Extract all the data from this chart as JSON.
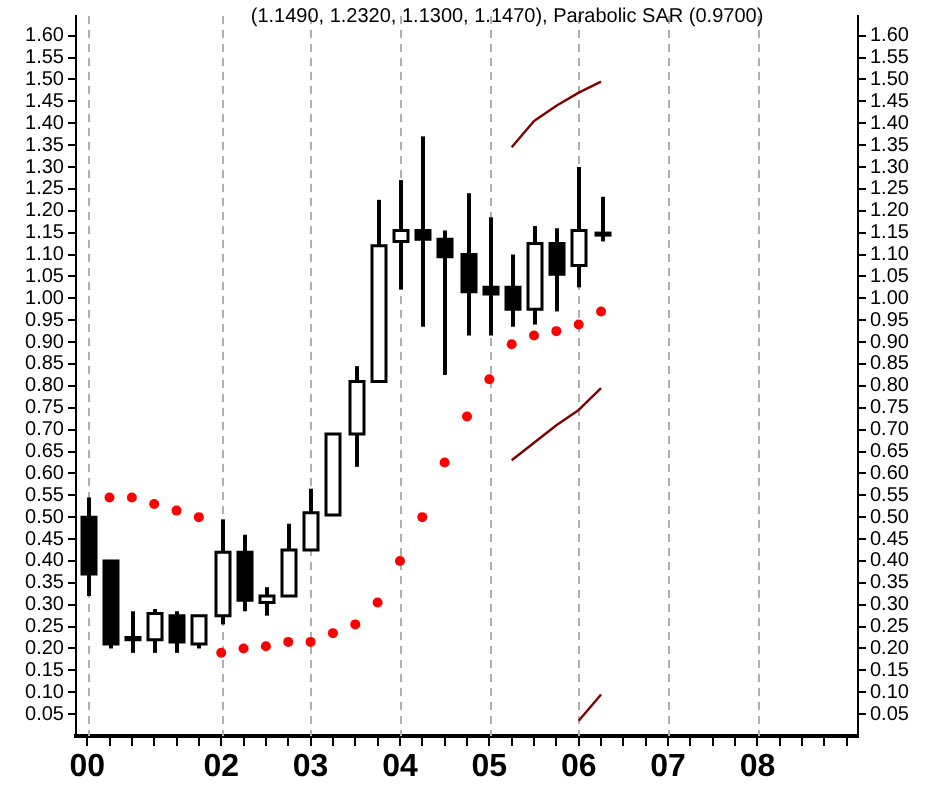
{
  "chart_data": {
    "type": "candlestick",
    "title": "(1.1490, 1.2320, 1.1300, 1.1470), Parabolic SAR (0.9700)",
    "categories": [
      "00",
      null,
      null,
      null,
      null,
      null,
      "02",
      null,
      null,
      null,
      "03",
      null,
      null,
      null,
      "04",
      null,
      null,
      null,
      "05",
      null,
      null,
      null,
      "06",
      null,
      null,
      null,
      "07",
      null,
      null,
      null,
      "08",
      null,
      null,
      null,
      null
    ],
    "ohlc": [
      [
        0.5,
        0.545,
        0.32,
        0.37
      ],
      [
        0.4,
        0.4,
        0.2,
        0.21
      ],
      [
        0.22,
        0.285,
        0.19,
        0.225
      ],
      [
        0.22,
        0.29,
        0.19,
        0.28
      ],
      [
        0.275,
        0.285,
        0.19,
        0.215
      ],
      [
        0.21,
        0.275,
        0.2,
        0.275
      ],
      [
        0.275,
        0.495,
        0.255,
        0.42
      ],
      [
        0.42,
        0.46,
        0.285,
        0.31
      ],
      [
        0.305,
        0.34,
        0.275,
        0.32
      ],
      [
        0.32,
        0.485,
        0.32,
        0.425
      ],
      [
        0.425,
        0.565,
        0.425,
        0.51
      ],
      [
        0.505,
        0.69,
        0.505,
        0.69
      ],
      [
        0.69,
        0.845,
        0.615,
        0.81
      ],
      [
        0.81,
        1.225,
        0.81,
        1.12
      ],
      [
        1.13,
        1.27,
        1.02,
        1.155
      ],
      [
        1.155,
        1.37,
        0.935,
        1.135
      ],
      [
        1.135,
        1.155,
        0.825,
        1.095
      ],
      [
        1.1,
        1.24,
        0.915,
        1.015
      ],
      [
        1.025,
        1.185,
        0.915,
        1.01
      ],
      [
        1.025,
        1.1,
        0.935,
        0.975
      ],
      [
        0.975,
        1.165,
        0.94,
        1.125
      ],
      [
        1.125,
        1.16,
        0.97,
        1.055
      ],
      [
        1.075,
        1.3,
        1.025,
        1.155
      ],
      [
        1.149,
        1.232,
        1.13,
        1.147
      ],
      null,
      null,
      null,
      null,
      null,
      null,
      null,
      null,
      null,
      null,
      null
    ],
    "series": [
      {
        "type": "scatter",
        "color": "#ff0000",
        "marker": "circle",
        "values": [
          null,
          0.545,
          0.545,
          0.53,
          0.515,
          0.5,
          0.19,
          0.2,
          0.205,
          0.215,
          0.215,
          0.235,
          0.255,
          0.305,
          0.4,
          0.5,
          0.625,
          0.73,
          0.815,
          0.895,
          0.915,
          0.925,
          0.94,
          0.97,
          null,
          null,
          null,
          null,
          null,
          null,
          null,
          null,
          null,
          null,
          null
        ]
      },
      {
        "type": "line",
        "color": "#800000",
        "marker": "none",
        "values": [
          null,
          null,
          null,
          null,
          null,
          null,
          null,
          null,
          null,
          null,
          null,
          null,
          null,
          null,
          null,
          null,
          null,
          null,
          null,
          1.345,
          1.405,
          1.44,
          1.47,
          1.495,
          null,
          null,
          null,
          null,
          null,
          null,
          null,
          null,
          null,
          null,
          null
        ]
      },
      {
        "type": "line",
        "color": "#800000",
        "marker": "none",
        "values": [
          null,
          null,
          null,
          null,
          null,
          null,
          null,
          null,
          null,
          null,
          null,
          null,
          null,
          null,
          null,
          null,
          null,
          null,
          null,
          0.63,
          0.67,
          0.71,
          0.745,
          0.795,
          null,
          null,
          null,
          null,
          null,
          null,
          null,
          null,
          null,
          null,
          null
        ]
      },
      {
        "type": "line",
        "color": "#800000",
        "marker": "none",
        "values": [
          null,
          null,
          null,
          null,
          null,
          null,
          null,
          null,
          null,
          null,
          null,
          null,
          null,
          null,
          null,
          null,
          null,
          null,
          null,
          null,
          null,
          null,
          0.035,
          0.095,
          null,
          null,
          null,
          null,
          null,
          null,
          null,
          null,
          null,
          null,
          null
        ]
      }
    ],
    "ylim": [
      0,
      1.645
    ],
    "yticks": [
      {
        "value": 0.05,
        "label": "0.05"
      },
      {
        "value": 0.1,
        "label": "0.10"
      },
      {
        "value": 0.15,
        "label": "0.15"
      },
      {
        "value": 0.2,
        "label": "0.20"
      },
      {
        "value": 0.25,
        "label": "0.25"
      },
      {
        "value": 0.3,
        "label": "0.30"
      },
      {
        "value": 0.35,
        "label": "0.35"
      },
      {
        "value": 0.4,
        "label": "0.40"
      },
      {
        "value": 0.45,
        "label": "0.45"
      },
      {
        "value": 0.5,
        "label": "0.50"
      },
      {
        "value": 0.55,
        "label": "0.55"
      },
      {
        "value": 0.6,
        "label": "0.60"
      },
      {
        "value": 0.65,
        "label": "0.65"
      },
      {
        "value": 0.7,
        "label": "0.70"
      },
      {
        "value": 0.75,
        "label": "0.75"
      },
      {
        "value": 0.8,
        "label": "0.80"
      },
      {
        "value": 0.85,
        "label": "0.85"
      },
      {
        "value": 0.9,
        "label": "0.90"
      },
      {
        "value": 0.95,
        "label": "0.95"
      },
      {
        "value": 1.0,
        "label": "1.00"
      },
      {
        "value": 1.05,
        "label": "1.05"
      },
      {
        "value": 1.1,
        "label": "1.10"
      },
      {
        "value": 1.15,
        "label": "1.15"
      },
      {
        "value": 1.2,
        "label": "1.20"
      },
      {
        "value": 1.25,
        "label": "1.25"
      },
      {
        "value": 1.3,
        "label": "1.30"
      },
      {
        "value": 1.35,
        "label": "1.35"
      },
      {
        "value": 1.4,
        "label": "1.40"
      },
      {
        "value": 1.45,
        "label": "1.45"
      },
      {
        "value": 1.5,
        "label": "1.50"
      },
      {
        "value": 1.55,
        "label": "1.55"
      },
      {
        "value": 1.6,
        "label": "1.60"
      }
    ],
    "y2lim": [
      0,
      1.645
    ],
    "y2ticks": [
      {
        "value": 0.05,
        "label": "0.05"
      },
      {
        "value": 0.1,
        "label": "0.10"
      },
      {
        "value": 0.15,
        "label": "0.15"
      },
      {
        "value": 0.2,
        "label": "0.20"
      },
      {
        "value": 0.25,
        "label": "0.25"
      },
      {
        "value": 0.3,
        "label": "0.30"
      },
      {
        "value": 0.35,
        "label": "0.35"
      },
      {
        "value": 0.4,
        "label": "0.40"
      },
      {
        "value": 0.45,
        "label": "0.45"
      },
      {
        "value": 0.5,
        "label": "0.50"
      },
      {
        "value": 0.55,
        "label": "0.55"
      },
      {
        "value": 0.6,
        "label": "0.60"
      },
      {
        "value": 0.65,
        "label": "0.65"
      },
      {
        "value": 0.7,
        "label": "0.70"
      },
      {
        "value": 0.75,
        "label": "0.75"
      },
      {
        "value": 0.8,
        "label": "0.80"
      },
      {
        "value": 0.85,
        "label": "0.85"
      },
      {
        "value": 0.9,
        "label": "0.90"
      },
      {
        "value": 0.95,
        "label": "0.95"
      },
      {
        "value": 1.0,
        "label": "1.00"
      },
      {
        "value": 1.05,
        "label": "1.05"
      },
      {
        "value": 1.1,
        "label": "1.10"
      },
      {
        "value": 1.15,
        "label": "1.15"
      },
      {
        "value": 1.2,
        "label": "1.20"
      },
      {
        "value": 1.25,
        "label": "1.25"
      },
      {
        "value": 1.3,
        "label": "1.30"
      },
      {
        "value": 1.35,
        "label": "1.35"
      },
      {
        "value": 1.4,
        "label": "1.40"
      },
      {
        "value": 1.45,
        "label": "1.45"
      },
      {
        "value": 1.5,
        "label": "1.50"
      },
      {
        "value": 1.55,
        "label": "1.55"
      },
      {
        "value": 1.6,
        "label": "1.60"
      }
    ],
    "grid": "x"
  }
}
